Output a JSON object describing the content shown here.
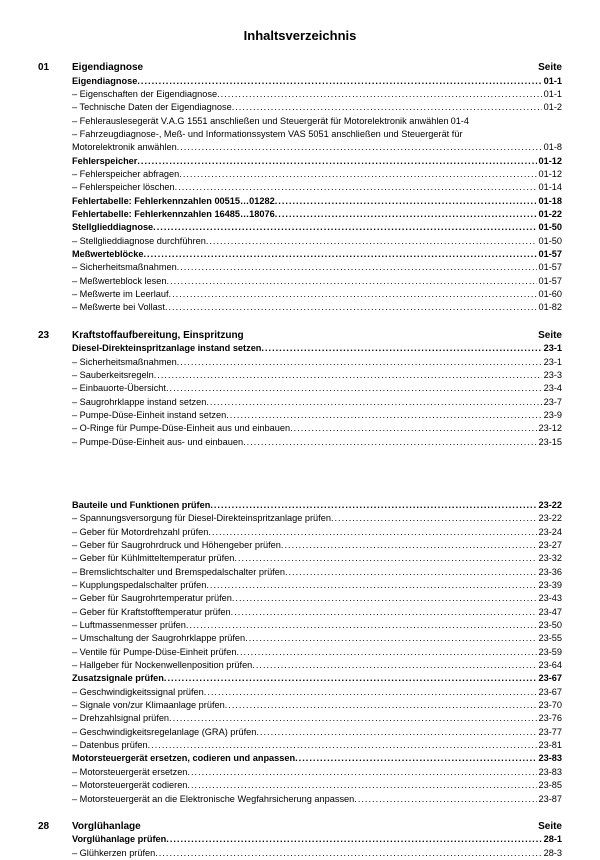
{
  "title": "Inhaltsverzeichnis",
  "page_label": "Seite",
  "sections": [
    {
      "num": "01",
      "title": "Eigendiagnose",
      "entries": [
        {
          "label": "Eigendiagnose",
          "page": "01-1",
          "bold": true,
          "dash": false
        },
        {
          "label": "Eigenschaften der Eigendiagnose",
          "page": "01-1",
          "bold": false,
          "dash": true
        },
        {
          "label": "Technische Daten der Eigendiagnose",
          "page": "01-2",
          "bold": false,
          "dash": true
        },
        {
          "label": "Fehlerauslesegerät V.A.G 1551 anschließen und Steuergerät für Motorelektronik anwählen",
          "page": "01-4",
          "bold": false,
          "dash": true,
          "nodots": true
        },
        {
          "label": "Fahrzeugdiagnose-, Meß- und Informationssystem VAS 5051 anschließen und Steuergerät für",
          "page": "",
          "bold": false,
          "dash": true,
          "nowrap": true,
          "nodots": true
        },
        {
          "label": "Motorelektronik anwählen",
          "page": "01-8",
          "bold": false,
          "dash": false,
          "cont": true
        },
        {
          "label": "Fehlerspeicher",
          "page": "01-12",
          "bold": true,
          "dash": false
        },
        {
          "label": "Fehlerspeicher abfragen",
          "page": "01-12",
          "bold": false,
          "dash": true
        },
        {
          "label": "Fehlerspeicher löschen",
          "page": "01-14",
          "bold": false,
          "dash": true
        },
        {
          "label": "Fehlertabelle: Fehlerkennzahlen 00515…01282",
          "page": "01-18",
          "bold": true,
          "dash": false
        },
        {
          "label": "Fehlertabelle: Fehlerkennzahlen 16485…18076",
          "page": "01-22",
          "bold": true,
          "dash": false
        },
        {
          "label": "Stellglieddiagnose",
          "page": "01-50",
          "bold": true,
          "dash": false
        },
        {
          "label": "Stellglieddiagnose durchführen",
          "page": "01-50",
          "bold": false,
          "dash": true
        },
        {
          "label": "Meßwerteblöcke",
          "page": "01-57",
          "bold": true,
          "dash": false
        },
        {
          "label": "Sicherheitsmaßnahmen",
          "page": "01-57",
          "bold": false,
          "dash": true
        },
        {
          "label": "Meßwerteblock lesen",
          "page": "01-57",
          "bold": false,
          "dash": true
        },
        {
          "label": "Meßwerte im Leerlauf",
          "page": "01-60",
          "bold": false,
          "dash": true
        },
        {
          "label": "Meßwerte bei Vollast",
          "page": "01-82",
          "bold": false,
          "dash": true
        }
      ]
    },
    {
      "num": "23",
      "title": "Kraftstoffaufbereitung, Einspritzung",
      "entries": [
        {
          "label": "Diesel-Direkteinspritzanlage instand setzen",
          "page": "23-1",
          "bold": true,
          "dash": false
        },
        {
          "label": "Sicherheitsmaßnahmen",
          "page": "23-1",
          "bold": false,
          "dash": true
        },
        {
          "label": "Sauberkeitsregeln",
          "page": "23-3",
          "bold": false,
          "dash": true
        },
        {
          "label": "Einbauorte-Übersicht",
          "page": "23-4",
          "bold": false,
          "dash": true
        },
        {
          "label": "Saugrohrklappe instand setzen",
          "page": "23-7",
          "bold": false,
          "dash": true
        },
        {
          "label": "Pumpe-Düse-Einheit instand setzen",
          "page": "23-9",
          "bold": false,
          "dash": true
        },
        {
          "label": "O-Ringe für Pumpe-Düse-Einheit aus und einbauen",
          "page": "23-12",
          "bold": false,
          "dash": true
        },
        {
          "label": "Pumpe-Düse-Einheit aus- und einbauen",
          "page": "23-15",
          "bold": false,
          "dash": true
        },
        {
          "gap": true
        },
        {
          "label": "Bauteile und Funktionen prüfen",
          "page": "23-22",
          "bold": true,
          "dash": false
        },
        {
          "label": "Spannungsversorgung für Diesel-Direkteinspritzanlage prüfen",
          "page": "23-22",
          "bold": false,
          "dash": true
        },
        {
          "label": "Geber für Motordrehzahl prüfen",
          "page": "23-24",
          "bold": false,
          "dash": true
        },
        {
          "label": "Geber für Saugrohrdruck und Höhengeber prüfen",
          "page": "23-27",
          "bold": false,
          "dash": true
        },
        {
          "label": "Geber für Kühlmitteltemperatur prüfen",
          "page": "23-32",
          "bold": false,
          "dash": true
        },
        {
          "label": "Bremslichtschalter und Bremspedalschalter prüfen",
          "page": "23-36",
          "bold": false,
          "dash": true
        },
        {
          "label": "Kupplungspedalschalter prüfen",
          "page": "23-39",
          "bold": false,
          "dash": true
        },
        {
          "label": "Geber für Saugrohrtemperatur prüfen",
          "page": "23-43",
          "bold": false,
          "dash": true
        },
        {
          "label": "Geber für Kraftstofftemperatur prüfen",
          "page": "23-47",
          "bold": false,
          "dash": true
        },
        {
          "label": "Luftmassenmesser prüfen",
          "page": "23-50",
          "bold": false,
          "dash": true
        },
        {
          "label": "Umschaltung der Saugrohrklappe prüfen",
          "page": "23-55",
          "bold": false,
          "dash": true
        },
        {
          "label": "Ventile für Pumpe-Düse-Einheit prüfen",
          "page": "23-59",
          "bold": false,
          "dash": true
        },
        {
          "label": "Hallgeber für Nockenwellenposition prüfen",
          "page": "23-64",
          "bold": false,
          "dash": true
        },
        {
          "label": "Zusatzsignale prüfen",
          "page": "23-67",
          "bold": true,
          "dash": false
        },
        {
          "label": "Geschwindigkeitssignal prüfen",
          "page": "23-67",
          "bold": false,
          "dash": true
        },
        {
          "label": "Signale von/zur Klimaanlage prüfen",
          "page": "23-70",
          "bold": false,
          "dash": true
        },
        {
          "label": "Drehzahlsignal prüfen",
          "page": "23-76",
          "bold": false,
          "dash": true
        },
        {
          "label": "Geschwindigkeitsregelanlage (GRA) prüfen",
          "page": "23-77",
          "bold": false,
          "dash": true
        },
        {
          "label": "Datenbus prüfen",
          "page": "23-81",
          "bold": false,
          "dash": true
        },
        {
          "label": "Motorsteuergerät ersetzen, codieren und anpassen",
          "page": "23-83",
          "bold": true,
          "dash": false
        },
        {
          "label": "Motorsteuergerät ersetzen",
          "page": "23-83",
          "bold": false,
          "dash": true
        },
        {
          "label": "Motorsteuergerät codieren",
          "page": "23-85",
          "bold": false,
          "dash": true
        },
        {
          "label": "Motorsteuergerät an die Elektronische Wegfahrsicherung anpassen",
          "page": "23-87",
          "bold": false,
          "dash": true
        }
      ]
    },
    {
      "num": "28",
      "title": "Vorglühanlage",
      "entries": [
        {
          "label": "Vorglühanlage prüfen",
          "page": "28-1",
          "bold": true,
          "dash": false
        },
        {
          "label": "Glühkerzen prüfen",
          "page": "28-3",
          "bold": false,
          "dash": true
        }
      ]
    }
  ]
}
